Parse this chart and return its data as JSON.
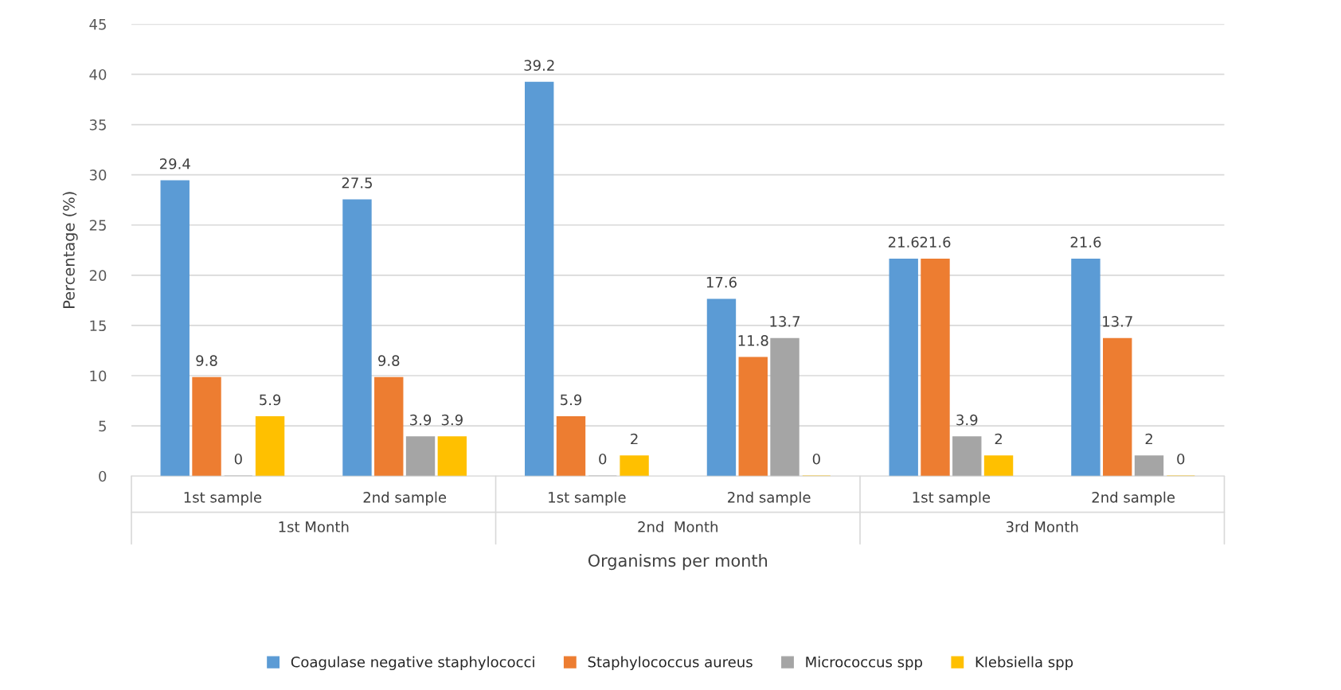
{
  "chart_data": {
    "type": "bar",
    "xlabel": "Organisms per month",
    "ylabel": "Percentage (%)",
    "categories": [
      "1st sample",
      "2nd sample",
      "1st sample",
      "2nd sample",
      "1st sample",
      "2nd sample"
    ],
    "series": [
      {
        "name": "Coagulase negative staphylococci",
        "color": "#5b9bd5",
        "values": [
          29.4,
          27.5,
          39.2,
          17.6,
          21.6,
          21.6
        ]
      },
      {
        "name": "Staphylococcus aureus",
        "color": "#ed7d31",
        "values": [
          9.8,
          9.8,
          5.9,
          11.8,
          21.6,
          13.7
        ]
      },
      {
        "name": "Micrococcus spp",
        "color": "#a5a5a5",
        "values": [
          0,
          3.9,
          0,
          13.7,
          3.9,
          2
        ]
      },
      {
        "name": "Klebsiella spp",
        "color": "#ffc000",
        "values": [
          5.9,
          3.9,
          2,
          0,
          2,
          0
        ]
      }
    ],
    "annotations": [
      "1st Month",
      "2nd  Month",
      "3rd Month"
    ],
    "ylim": [
      0,
      45
    ],
    "yticks": [
      0,
      5,
      10,
      15,
      20,
      25,
      30,
      35,
      40,
      45
    ],
    "grid": "y",
    "legend": "bottom",
    "data_labels": true
  }
}
